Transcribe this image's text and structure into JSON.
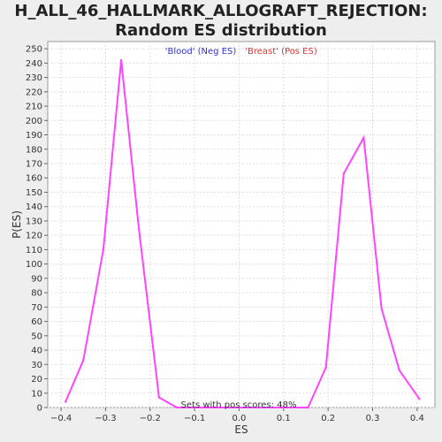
{
  "chart_data": {
    "type": "line",
    "title_line1": "H_ALL_46_HALLMARK_ALLOGRAFT_REJECTION:",
    "title_line2": "Random ES distribution",
    "xlabel": "ES",
    "ylabel": "P(ES)",
    "xlim": [
      -0.43,
      0.44
    ],
    "ylim": [
      0,
      255
    ],
    "xticks": [
      -0.4,
      -0.3,
      -0.2,
      -0.1,
      0.0,
      0.1,
      0.2,
      0.3,
      0.4
    ],
    "xtick_labels": [
      "−0.4",
      "−0.3",
      "−0.2",
      "−0.1",
      "0.0",
      "0.1",
      "0.2",
      "0.3",
      "0.4"
    ],
    "yticks": [
      0,
      10,
      20,
      30,
      40,
      50,
      60,
      70,
      80,
      90,
      100,
      110,
      120,
      130,
      140,
      150,
      160,
      170,
      180,
      190,
      200,
      210,
      220,
      230,
      240,
      250
    ],
    "grid": true,
    "line_color": "#ff44ff",
    "legend": [
      {
        "label": "'Blood' (Neg ES)",
        "color": "#3333cc"
      },
      {
        "label": "'Breast' (Pos ES)",
        "color": "#dd3333"
      }
    ],
    "annotation": "Sets with pos scores: 48%",
    "x": [
      -0.39,
      -0.35,
      -0.305,
      -0.265,
      -0.225,
      -0.18,
      -0.14,
      -0.1,
      0.0,
      0.1,
      0.155,
      0.195,
      0.235,
      0.28,
      0.32,
      0.36,
      0.405
    ],
    "y": [
      4,
      33,
      110,
      242,
      124,
      7,
      0,
      0,
      0,
      0,
      0,
      28,
      163,
      188,
      69,
      26,
      6
    ]
  }
}
